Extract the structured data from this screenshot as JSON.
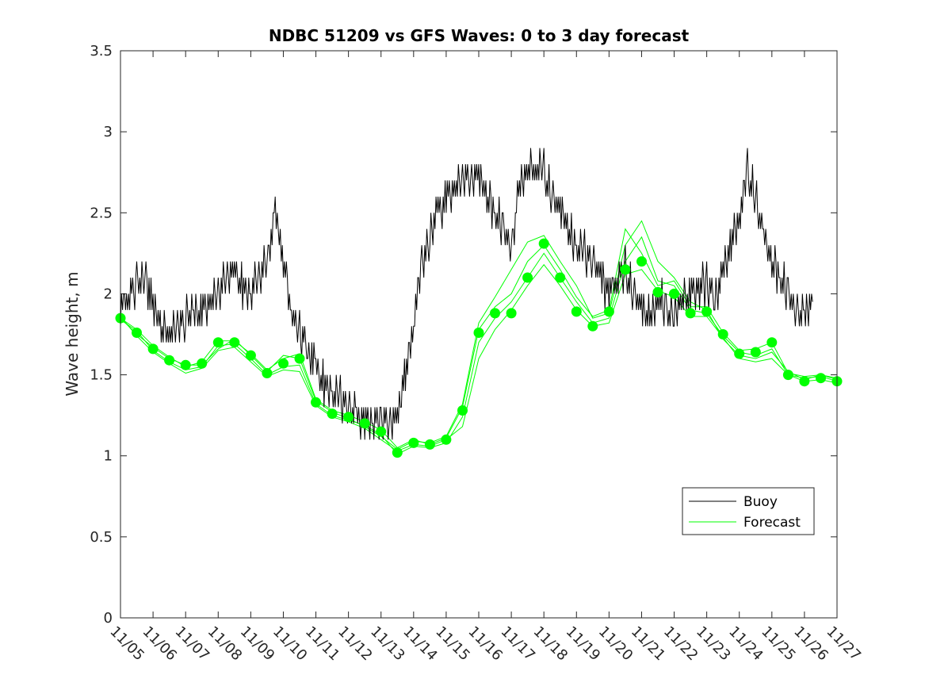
{
  "chart_data": {
    "type": "line",
    "title": "NDBC 51209 vs GFS Waves: 0 to 3 day forecast",
    "xlabel": "",
    "ylabel": "Wave height, m",
    "xlim": [
      0,
      22
    ],
    "ylim": [
      0,
      3.5
    ],
    "x_tick_labels": [
      "11/05",
      "11/06",
      "11/07",
      "11/08",
      "11/09",
      "11/10",
      "11/11",
      "11/12",
      "11/13",
      "11/14",
      "11/15",
      "11/16",
      "11/17",
      "11/18",
      "11/19",
      "11/20",
      "11/21",
      "11/22",
      "11/23",
      "11/24",
      "11/25",
      "11/26",
      "11/27"
    ],
    "y_ticks": [
      0,
      0.5,
      1,
      1.5,
      2,
      2.5,
      3,
      3.5
    ],
    "y_tick_labels": [
      "0",
      "0.5",
      "1",
      "1.5",
      "2",
      "2.5",
      "3",
      "3.5"
    ],
    "legend": {
      "position": "bottom-right",
      "entries": [
        "Buoy",
        "Forecast"
      ]
    },
    "colors": {
      "buoy": "#000000",
      "forecast": "#00ff00"
    },
    "series": [
      {
        "name": "Buoy",
        "x": [
          0,
          0.25,
          0.5,
          0.75,
          1,
          1.25,
          1.5,
          1.75,
          2,
          2.25,
          2.5,
          2.75,
          3,
          3.25,
          3.5,
          3.75,
          4,
          4.25,
          4.5,
          4.75,
          5,
          5.25,
          5.5,
          5.75,
          6,
          6.25,
          6.5,
          6.75,
          7,
          7.25,
          7.5,
          7.75,
          8,
          8.25,
          8.5,
          8.75,
          9,
          9.25,
          9.5,
          9.75,
          10,
          10.25,
          10.5,
          10.75,
          11,
          11.25,
          11.5,
          11.75,
          12,
          12.25,
          12.5,
          12.75,
          13,
          13.25,
          13.5,
          13.75,
          14,
          14.25,
          14.5,
          14.75,
          15,
          15.25,
          15.5,
          15.75,
          16,
          16.25,
          16.5,
          16.75,
          17,
          17.25,
          17.5,
          17.75,
          18,
          18.25,
          18.5,
          18.75,
          19,
          19.25,
          19.5,
          19.75,
          20,
          20.25,
          20.5,
          20.75,
          21,
          21.25
        ],
        "values": [
          1.9,
          2.0,
          2.05,
          2.1,
          1.9,
          1.8,
          1.75,
          1.8,
          1.85,
          1.85,
          1.9,
          1.95,
          2.0,
          2.1,
          2.15,
          2.05,
          2.0,
          2.1,
          2.2,
          2.5,
          2.2,
          1.9,
          1.75,
          1.65,
          1.55,
          1.45,
          1.4,
          1.35,
          1.3,
          1.25,
          1.2,
          1.22,
          1.2,
          1.2,
          1.25,
          1.5,
          1.8,
          2.2,
          2.35,
          2.5,
          2.6,
          2.65,
          2.7,
          2.7,
          2.7,
          2.6,
          2.5,
          2.4,
          2.3,
          2.65,
          2.75,
          2.8,
          2.75,
          2.6,
          2.5,
          2.4,
          2.3,
          2.25,
          2.2,
          2.1,
          2.0,
          2.1,
          2.15,
          2.0,
          1.9,
          1.85,
          2.0,
          1.9,
          1.85,
          1.95,
          2.0,
          2.05,
          2.05,
          1.95,
          2.1,
          2.3,
          2.5,
          2.75,
          2.6,
          2.35,
          2.2,
          2.1,
          2.0,
          1.9,
          1.85,
          1.95
        ]
      },
      {
        "name": "Forecast",
        "x": [
          0,
          0.5,
          1,
          1.5,
          2,
          2.5,
          3,
          3.5,
          4,
          4.5,
          5,
          5.5,
          6,
          6.5,
          7,
          7.5,
          8,
          8.5,
          9,
          9.5,
          10,
          10.5,
          11,
          11.5,
          12,
          12.5,
          13,
          13.5,
          14,
          14.5,
          15,
          15.5,
          16,
          16.5,
          17,
          17.5,
          18,
          18.5,
          19,
          19.5,
          20,
          20.5,
          21,
          21.5,
          22
        ],
        "values": [
          1.85,
          1.76,
          1.66,
          1.59,
          1.56,
          1.57,
          1.7,
          1.7,
          1.62,
          1.51,
          1.57,
          1.6,
          1.33,
          1.26,
          1.24,
          1.2,
          1.15,
          1.02,
          1.08,
          1.07,
          1.1,
          1.28,
          1.76,
          1.88,
          1.88,
          2.1,
          2.31,
          2.1,
          1.89,
          1.8,
          1.89,
          2.15,
          2.2,
          2.01,
          2.0,
          1.88,
          1.89,
          1.75,
          1.63,
          1.64,
          1.7,
          1.5,
          1.46,
          1.48,
          1.46
        ]
      }
    ],
    "forecast_ensemble": [
      [
        1.85,
        1.75,
        1.67,
        1.6,
        1.56,
        1.56,
        1.66,
        1.72,
        1.62,
        1.52,
        1.62,
        1.6,
        1.34,
        1.27,
        1.23,
        1.18,
        1.12,
        1.04,
        1.09,
        1.08,
        1.12,
        1.32,
        1.82,
        1.98,
        2.15,
        2.32,
        2.36,
        2.2,
        2.05,
        1.85,
        1.88,
        2.3,
        2.45,
        2.2,
        2.1,
        1.95,
        1.9,
        1.72,
        1.62,
        1.6,
        1.64,
        1.52,
        1.47,
        1.5,
        1.48
      ],
      [
        1.84,
        1.77,
        1.65,
        1.58,
        1.53,
        1.55,
        1.68,
        1.69,
        1.6,
        1.5,
        1.55,
        1.56,
        1.32,
        1.25,
        1.22,
        1.19,
        1.13,
        1.01,
        1.06,
        1.05,
        1.08,
        1.24,
        1.7,
        1.85,
        1.95,
        2.1,
        2.25,
        2.1,
        1.95,
        1.82,
        1.85,
        2.2,
        2.35,
        2.08,
        2.05,
        1.9,
        1.88,
        1.74,
        1.64,
        1.62,
        1.66,
        1.5,
        1.48,
        1.49,
        1.46
      ],
      [
        1.86,
        1.74,
        1.64,
        1.57,
        1.51,
        1.54,
        1.65,
        1.67,
        1.58,
        1.49,
        1.53,
        1.52,
        1.31,
        1.24,
        1.21,
        1.17,
        1.1,
        1.03,
        1.07,
        1.06,
        1.1,
        1.18,
        1.6,
        1.78,
        1.9,
        2.05,
        2.18,
        2.05,
        1.9,
        1.8,
        1.82,
        2.12,
        2.15,
        2.02,
        1.98,
        1.86,
        1.86,
        1.73,
        1.6,
        1.58,
        1.6,
        1.5,
        1.46,
        1.47,
        1.45
      ],
      [
        1.85,
        1.78,
        1.68,
        1.61,
        1.55,
        1.58,
        1.71,
        1.71,
        1.63,
        1.53,
        1.6,
        1.63,
        1.35,
        1.28,
        1.25,
        1.21,
        1.16,
        1.05,
        1.1,
        1.07,
        1.11,
        1.3,
        1.78,
        1.92,
        2.0,
        2.2,
        2.3,
        2.15,
        1.98,
        1.86,
        1.9,
        2.4,
        2.25,
        2.05,
        2.08,
        1.92,
        1.92,
        1.76,
        1.65,
        1.66,
        1.7,
        1.51,
        1.49,
        1.5,
        1.47
      ]
    ]
  }
}
